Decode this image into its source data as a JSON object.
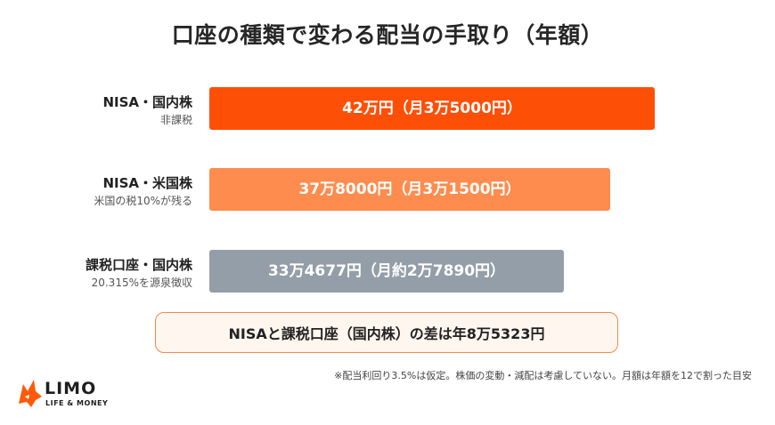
{
  "title": "口座の種類で変わる配当の手取り（年額）",
  "chart_data": {
    "type": "bar",
    "orientation": "horizontal",
    "title": "口座の種類で変わる配当の手取り（年額）",
    "categories": [
      "NISA・国内株",
      "NISA・米国株",
      "課税口座・国内株"
    ],
    "category_notes": [
      "非課税",
      "米国の税10%が残る",
      "20.315%を源泉徴収"
    ],
    "values": [
      420000,
      378000,
      334677
    ],
    "value_labels": [
      "42万円（月3万5000円）",
      "37万8000円（月3万1500円）",
      "33万4677円（月約2万7890円）"
    ],
    "colors": [
      "#fe4f06",
      "#fe8c4e",
      "#949ea8"
    ],
    "grid": false,
    "legend": "none"
  },
  "summary": "NISAと課税口座（国内株）の差は年8万5323円",
  "note": "※配当利回り3.5%は仮定。株価の変動・減配は考慮していない。月額は年額を12で割った目安",
  "logo": {
    "name": "LIMO",
    "tagline": "LIFE & MONEY",
    "colors": {
      "icon": "#fe5a0a",
      "text": "#1f1f1f"
    }
  }
}
